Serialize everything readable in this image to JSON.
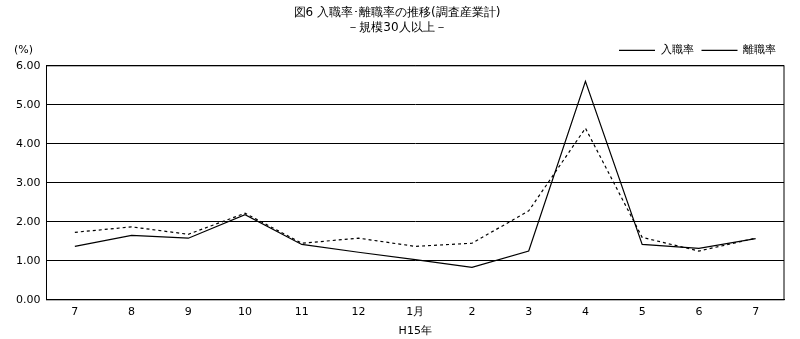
{
  "chart_data": {
    "type": "line",
    "title": "図6 入職率･離職率の推移(調査産業計)",
    "subtitle": "－規模30人以上－",
    "y_label": "(%)",
    "categories": [
      "7",
      "8",
      "9",
      "10",
      "11",
      "12",
      "1月",
      "2",
      "3",
      "4",
      "5",
      "6",
      "7"
    ],
    "annotations": [
      {
        "text": "H15年",
        "at": "1月"
      }
    ],
    "series": [
      {
        "name": "入職率",
        "color": "#000000",
        "line_style": "solid",
        "values": [
          1.37,
          1.65,
          1.58,
          2.18,
          1.42,
          1.22,
          1.03,
          0.83,
          1.25,
          5.6,
          1.42,
          1.32,
          1.57
        ]
      },
      {
        "name": "離職率",
        "color": "#000000",
        "line_style": "dotted",
        "values": [
          1.73,
          1.87,
          1.68,
          2.22,
          1.45,
          1.58,
          1.37,
          1.45,
          2.28,
          4.4,
          1.6,
          1.25,
          1.58
        ]
      }
    ],
    "ylim": [
      0,
      6
    ],
    "yticks": [
      {
        "value": 0,
        "label": "0.00"
      },
      {
        "value": 1,
        "label": "1.00"
      },
      {
        "value": 2,
        "label": "2.00"
      },
      {
        "value": 3,
        "label": "3.00"
      },
      {
        "value": 4,
        "label": "4.00"
      },
      {
        "value": 5,
        "label": "5.00"
      },
      {
        "value": 6,
        "label": "6.00"
      }
    ],
    "grid": true,
    "legend": "top-right"
  }
}
